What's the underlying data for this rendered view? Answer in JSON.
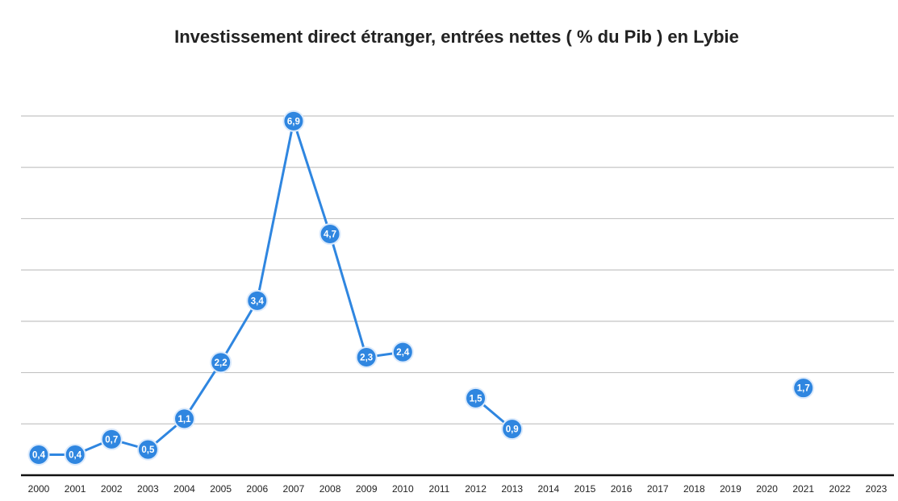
{
  "chart_data": {
    "type": "line",
    "title": "Investissement direct étranger, entrées nettes ( % du Pib ) en Lybie",
    "categories": [
      "2000",
      "2001",
      "2002",
      "2003",
      "2004",
      "2005",
      "2006",
      "2007",
      "2008",
      "2009",
      "2010",
      "2011",
      "2012",
      "2013",
      "2014",
      "2015",
      "2016",
      "2017",
      "2018",
      "2019",
      "2020",
      "2021",
      "2022",
      "2023"
    ],
    "series": [
      {
        "color": "#2f86e0",
        "values": [
          0.4,
          0.4,
          0.7,
          0.5,
          1.1,
          2.2,
          3.4,
          6.9,
          4.7,
          2.3,
          2.4,
          null,
          1.5,
          0.9,
          null,
          null,
          null,
          null,
          null,
          null,
          null,
          1.7,
          null,
          null
        ],
        "value_labels": [
          "0,4",
          "0,4",
          "0,7",
          "0,5",
          "1,1",
          "2,2",
          "3,4",
          "6,9",
          "4,7",
          "2,3",
          "2,4",
          null,
          "1,5",
          "0,9",
          null,
          null,
          null,
          null,
          null,
          null,
          null,
          "1,7",
          null,
          null
        ]
      }
    ],
    "ylim": [
      0,
      7
    ],
    "yticks": [
      1,
      2,
      3,
      4,
      5,
      6,
      7
    ],
    "grid": true
  }
}
